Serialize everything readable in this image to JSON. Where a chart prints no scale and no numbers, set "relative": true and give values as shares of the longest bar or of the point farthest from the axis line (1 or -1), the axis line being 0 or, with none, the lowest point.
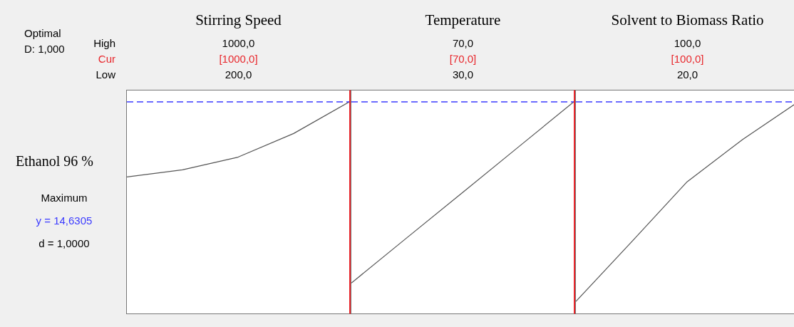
{
  "chart_data": [
    {
      "type": "line",
      "title": "Stirring Speed",
      "relative": true,
      "categories": [
        null,
        null,
        null,
        null,
        null
      ],
      "grid": false,
      "legend": false,
      "marker": "none",
      "series": [
        {
          "color": "#555555",
          "values": [
            0.644,
            0.678,
            0.738,
            0.85,
            1
          ]
        }
      ],
      "ref_lines": [
        {
          "axis": "y",
          "value": 1,
          "color": "#3b3bff",
          "line_style": "dashed"
        }
      ],
      "annotations": [
        "Optimal",
        "D: 1,000",
        "High",
        "Cur",
        "Low",
        "1000,0",
        "[1000,0]",
        "200,0",
        "Ethanol 96 %",
        "Maximum",
        "y = 14,6305",
        "d = 1,0000"
      ]
    },
    {
      "type": "line",
      "title": "Temperature",
      "relative": true,
      "categories": [
        null,
        null,
        null,
        null,
        null
      ],
      "grid": false,
      "legend": false,
      "marker": "none",
      "series": [
        {
          "color": "#555555",
          "values": [
            0.141,
            0.356,
            0.57,
            0.785,
            1
          ]
        }
      ],
      "ref_lines": [
        {
          "axis": "y",
          "value": 1,
          "color": "#3b3bff",
          "line_style": "dashed"
        }
      ],
      "annotations": [
        "70,0",
        "[70,0]",
        "30,0"
      ]
    },
    {
      "type": "line",
      "title": "Solvent to Biomass Ratio",
      "relative": true,
      "categories": [
        null,
        null,
        null,
        null,
        null
      ],
      "grid": false,
      "legend": false,
      "marker": "none",
      "series": [
        {
          "color": "#555555",
          "values": [
            0.054,
            0.336,
            0.621,
            0.822,
            1
          ]
        }
      ],
      "ref_lines": [
        {
          "axis": "y",
          "value": 1,
          "color": "#3b3bff",
          "line_style": "dashed"
        }
      ],
      "annotations": [
        "100,0",
        "[100,0]",
        "20,0"
      ]
    }
  ]
}
